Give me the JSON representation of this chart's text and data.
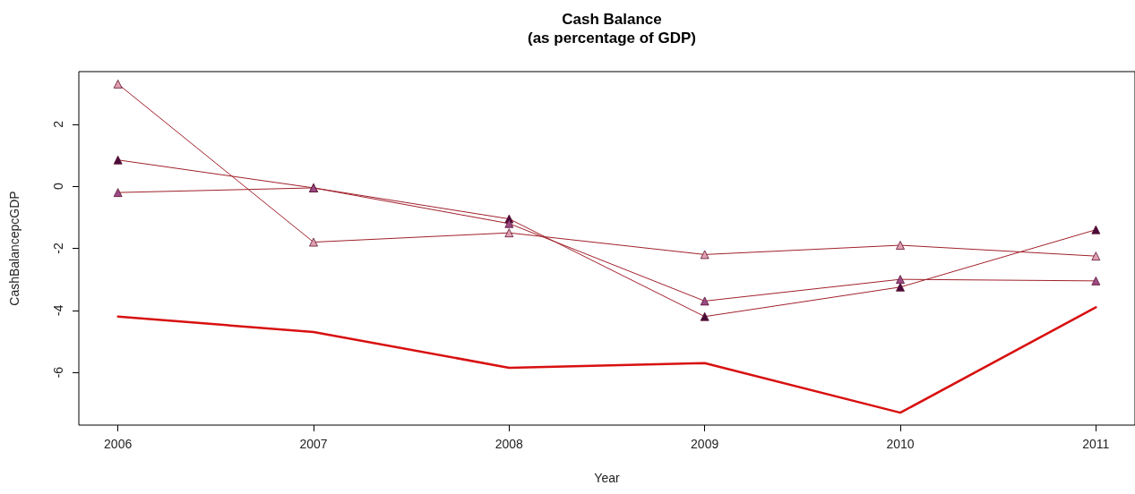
{
  "chart_data": {
    "type": "line",
    "title": "Cash Balance\n(as percentage of GDP)",
    "xlabel": "Year",
    "ylabel": "CashBalancepcGDP",
    "x": [
      2006,
      2007,
      2008,
      2009,
      2010,
      2011
    ],
    "series": [
      {
        "color": "#e0a0b0",
        "marker": "triangle",
        "values": [
          3.3,
          -1.8,
          -1.5,
          -2.2,
          -1.9,
          -2.25
        ]
      },
      {
        "color": "#4a0a3a",
        "marker": "triangle",
        "values": [
          0.85,
          -0.05,
          -1.05,
          -4.2,
          -3.25,
          -1.4
        ]
      },
      {
        "color": "#9a4a84",
        "marker": "triangle",
        "values": [
          -0.2,
          -0.05,
          -1.2,
          -3.7,
          -3.0,
          -3.05
        ]
      },
      {
        "color": "#d81010",
        "marker": "none",
        "values": [
          -4.2,
          -4.7,
          -5.85,
          -5.7,
          -7.3,
          -3.9
        ]
      }
    ],
    "xlim": [
      2005.8,
      2011.2
    ],
    "xticks": [
      2006,
      2007,
      2008,
      2009,
      2010,
      2011
    ],
    "ylim": [
      -7.7,
      3.7
    ],
    "yticks": [
      -6,
      -4,
      -2,
      0,
      2
    ],
    "grid": false,
    "line_style": "solid"
  }
}
